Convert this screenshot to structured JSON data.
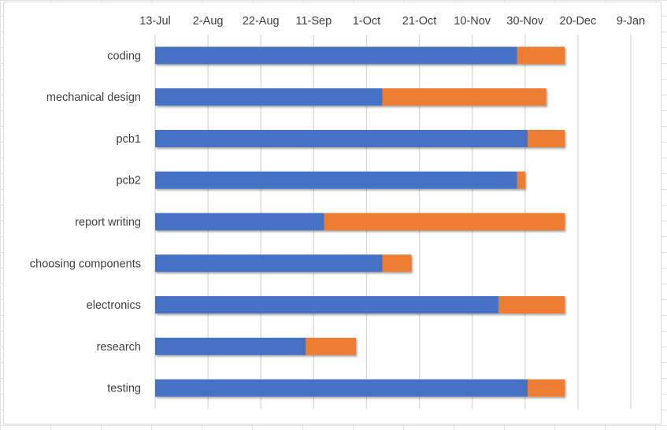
{
  "chart_data": {
    "type": "bar",
    "orientation": "horizontal",
    "stacked": true,
    "title": "",
    "xlabel": "",
    "ylabel": "",
    "x_axis_position": "top",
    "x_ticks": [
      "2020-07-13",
      "2020-08-02",
      "2020-08-22",
      "2020-09-11",
      "2020-10-01",
      "2020-10-21",
      "2020-11-10",
      "2020-11-30",
      "2020-12-20",
      "2021-01-09"
    ],
    "x_tick_labels": [
      "13-Jul",
      "2-Aug",
      "22-Aug",
      "11-Sep",
      "1-Oct",
      "21-Oct",
      "10-Nov",
      "30-Nov",
      "20-Dec",
      "9-Jan"
    ],
    "xlim": [
      "2020-07-13",
      "2021-01-09"
    ],
    "grid": true,
    "legend": "none",
    "categories": [
      "coding",
      "mechanical design",
      "pcb1",
      "pcb2",
      "report writing",
      "choosing components",
      "electronics",
      "research",
      "testing"
    ],
    "series": [
      {
        "color": "#4472C4",
        "values": [
          "2020-11-27",
          "2020-10-07",
          "2020-12-01",
          "2020-11-27",
          "2020-09-15",
          "2020-10-07",
          "2020-11-20",
          "2020-09-08",
          "2020-12-01"
        ]
      },
      {
        "color": "#ED7D31",
        "values": [
          "2020-12-15",
          "2020-12-08",
          "2020-12-15",
          "2020-11-30",
          "2020-12-15",
          "2020-10-18",
          "2020-12-15",
          "2020-09-27",
          "2020-12-15"
        ]
      }
    ]
  }
}
